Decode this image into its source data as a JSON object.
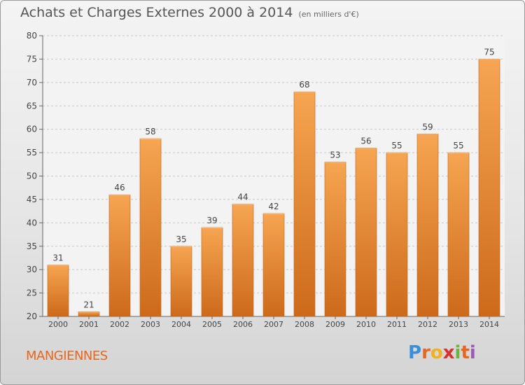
{
  "title": "Achats et Charges Externes 2000 à 2014",
  "subtitle": "(en milliers d'€)",
  "commune": "MANGIENNES",
  "logo": {
    "letters": [
      "P",
      "r",
      "o",
      "x",
      "i",
      "t",
      "i"
    ],
    "colors": [
      "#3a8fd9",
      "#e8661e",
      "#f2b01e",
      "#d9302c",
      "#6db33f",
      "#e8661e",
      "#9b59b6"
    ]
  },
  "colors": {
    "bar": "#e8842c",
    "bar_dark": "#cc6a1a",
    "bar_light": "#f6a552",
    "grid": "#c8c8c8",
    "text": "#444444"
  },
  "chart_data": {
    "type": "bar",
    "categories": [
      "2000",
      "2001",
      "2002",
      "2003",
      "2004",
      "2005",
      "2006",
      "2007",
      "2008",
      "2009",
      "2010",
      "2011",
      "2012",
      "2013",
      "2014"
    ],
    "values": [
      31,
      21,
      46,
      58,
      35,
      39,
      44,
      42,
      68,
      53,
      56,
      55,
      59,
      55,
      75
    ],
    "ylim": [
      20,
      80
    ],
    "yticks": [
      20,
      25,
      30,
      35,
      40,
      45,
      50,
      55,
      60,
      65,
      70,
      75,
      80
    ],
    "grid": true
  }
}
